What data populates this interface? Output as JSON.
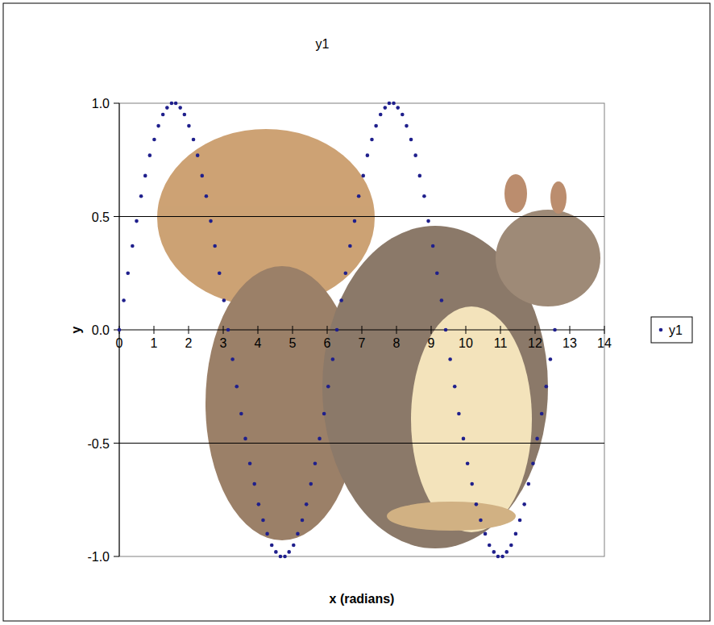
{
  "chart_data": {
    "type": "scatter",
    "title": "y1",
    "x_label": "x (radians)",
    "y_label": "y",
    "xlim": [
      0,
      14
    ],
    "ylim": [
      -1,
      1
    ],
    "xticks": [
      0,
      1,
      2,
      3,
      4,
      5,
      6,
      7,
      8,
      9,
      10,
      11,
      12,
      13,
      14
    ],
    "yticks": [
      {
        "value": -1,
        "label": "-1.0"
      },
      {
        "value": -0.5,
        "label": "-0.5"
      },
      {
        "value": 0,
        "label": "0.0"
      },
      {
        "value": 0.5,
        "label": "0.5"
      },
      {
        "value": 1,
        "label": "1.0"
      }
    ],
    "grid": true,
    "legend": "right",
    "x": [
      0,
      0.13,
      0.25,
      0.38,
      0.5,
      0.63,
      0.75,
      0.88,
      1.01,
      1.13,
      1.26,
      1.38,
      1.51,
      1.63,
      1.76,
      1.88,
      2.01,
      2.14,
      2.26,
      2.39,
      2.51,
      2.64,
      2.76,
      2.89,
      3.02,
      3.14,
      3.27,
      3.39,
      3.52,
      3.64,
      3.77,
      3.9,
      4.02,
      4.15,
      4.27,
      4.4,
      4.52,
      4.65,
      4.78,
      4.9,
      5.03,
      5.15,
      5.28,
      5.4,
      5.53,
      5.65,
      5.78,
      5.91,
      6.03,
      6.16,
      6.28,
      6.41,
      6.53,
      6.66,
      6.79,
      6.91,
      7.04,
      7.16,
      7.29,
      7.41,
      7.54,
      7.67,
      7.79,
      7.92,
      8.04,
      8.17,
      8.29,
      8.42,
      8.55,
      8.67,
      8.8,
      8.92,
      9.05,
      9.17,
      9.3,
      9.42,
      9.55,
      9.68,
      9.8,
      9.93,
      10.05,
      10.18,
      10.3,
      10.43,
      10.56,
      10.68,
      10.81,
      10.93,
      11.06,
      11.18,
      11.31,
      11.44,
      11.56,
      11.69,
      11.81,
      11.94,
      12.06,
      12.19,
      12.32,
      12.44,
      12.57
    ],
    "series": [
      {
        "name": "y1",
        "color": "#1f1f8c",
        "marker": "circle",
        "values": [
          0,
          0.13,
          0.25,
          0.37,
          0.48,
          0.59,
          0.68,
          0.77,
          0.84,
          0.9,
          0.95,
          0.98,
          1,
          1,
          0.98,
          0.95,
          0.9,
          0.84,
          0.77,
          0.68,
          0.59,
          0.48,
          0.37,
          0.25,
          0.13,
          0,
          -0.13,
          -0.25,
          -0.37,
          -0.48,
          -0.59,
          -0.68,
          -0.77,
          -0.84,
          -0.9,
          -0.95,
          -0.98,
          -1,
          -1,
          -0.98,
          -0.95,
          -0.9,
          -0.84,
          -0.77,
          -0.68,
          -0.59,
          -0.48,
          -0.37,
          -0.25,
          -0.13,
          0,
          0.13,
          0.25,
          0.37,
          0.48,
          0.59,
          0.68,
          0.77,
          0.84,
          0.9,
          0.95,
          0.98,
          1,
          1,
          0.98,
          0.95,
          0.9,
          0.84,
          0.77,
          0.68,
          0.59,
          0.48,
          0.37,
          0.25,
          0.13,
          0,
          -0.13,
          -0.25,
          -0.37,
          -0.48,
          -0.59,
          -0.68,
          -0.77,
          -0.84,
          -0.9,
          -0.95,
          -0.98,
          -1,
          -1,
          -0.98,
          -0.95,
          -0.9,
          -0.84,
          -0.77,
          -0.68,
          -0.59,
          -0.48,
          -0.37,
          -0.25,
          -0.13,
          0
        ]
      }
    ]
  }
}
